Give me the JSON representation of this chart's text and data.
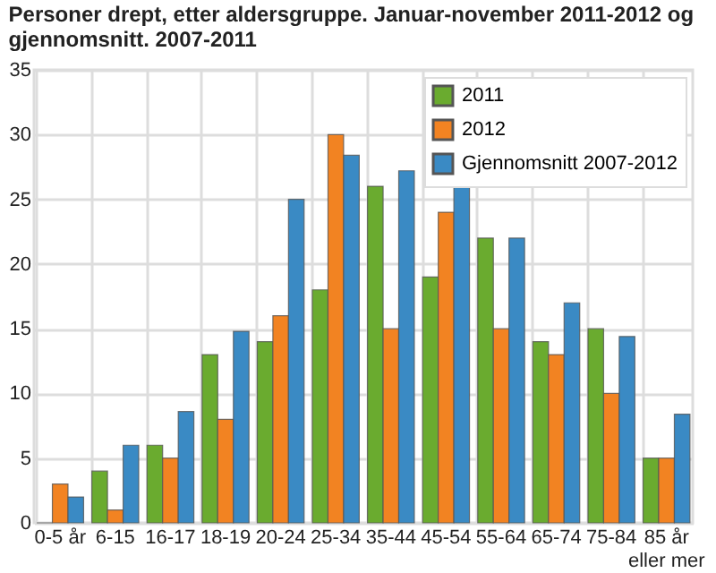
{
  "chart_data": {
    "type": "bar",
    "title": "Personer drept, etter aldersgruppe. Januar-november 2011-2012 og gjennomsnitt. 2007-2011",
    "categories": [
      "0-5 år",
      "6-15",
      "16-17",
      "18-19",
      "20-24",
      "25-34",
      "35-44",
      "45-54",
      "55-64",
      "65-74",
      "75-84",
      "85 år\neller mer"
    ],
    "series": [
      {
        "name": "2011",
        "color": "#6aab2f",
        "values": [
          0,
          4,
          6,
          13,
          14,
          18,
          26,
          19,
          22,
          14,
          15,
          5
        ]
      },
      {
        "name": "2012",
        "color": "#f28322",
        "values": [
          3,
          1,
          5,
          8,
          16,
          30,
          15,
          24,
          15,
          13,
          10,
          5
        ]
      },
      {
        "name": "Gjennomsnitt 2007-2012",
        "color": "#3a8ac4",
        "values": [
          2,
          6,
          8.6,
          14.8,
          25,
          28.4,
          27.2,
          26,
          22,
          17,
          14.4,
          8.4
        ]
      }
    ],
    "ylim": [
      0,
      35
    ],
    "yticks": [
      0,
      5,
      10,
      15,
      20,
      25,
      30,
      35
    ],
    "grid": true,
    "legend": "top right"
  }
}
